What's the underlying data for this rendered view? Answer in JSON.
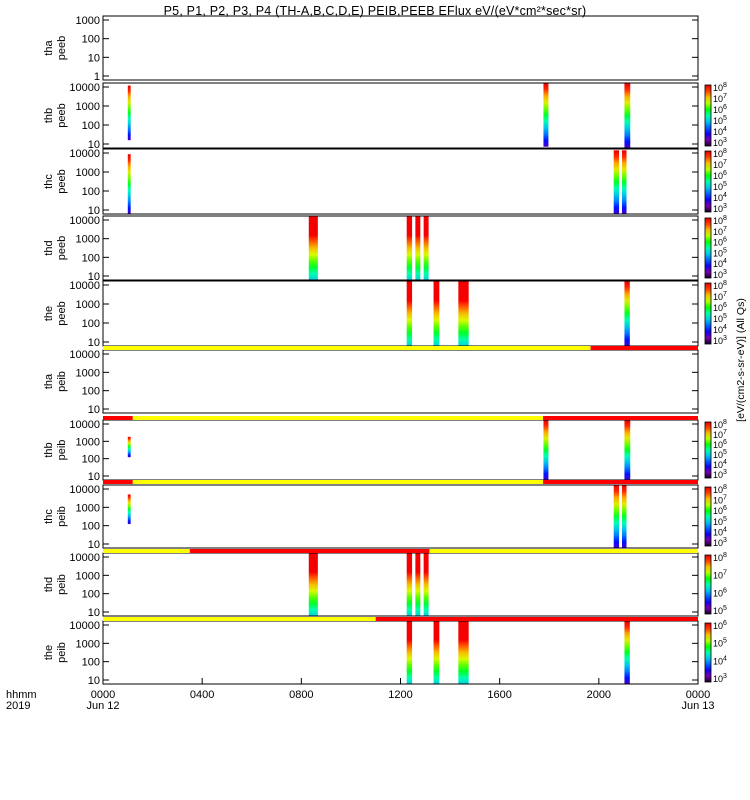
{
  "title": "P5, P1, P2, P3, P4 (TH-A,B,C,D,E) PEIB,PEEB EFlux eV/(eV*cm²*sec*sr)",
  "colorbar_label": "[eV/(cm2-s-sr-eV)] (All Qs)",
  "colors": {
    "mode_yellow": "#ffff00",
    "mode_red": "#ff0000",
    "frame": "#000000",
    "background": "#ffffff"
  },
  "chart_data": {
    "type": "heatmap",
    "x_axis": {
      "label": "hhmm",
      "year": "2019",
      "range": [
        0,
        1440
      ],
      "ticks": [
        {
          "minute": 0,
          "label": "0000",
          "date": "Jun 12"
        },
        {
          "minute": 240,
          "label": "0400",
          "date": ""
        },
        {
          "minute": 480,
          "label": "0800",
          "date": ""
        },
        {
          "minute": 720,
          "label": "1200",
          "date": ""
        },
        {
          "minute": 960,
          "label": "1600",
          "date": ""
        },
        {
          "minute": 1200,
          "label": "2000",
          "date": ""
        },
        {
          "minute": 1440,
          "label": "0000",
          "date": "Jun 13"
        }
      ]
    },
    "panels": [
      {
        "label1": "tha",
        "label2": "peeb",
        "y_ticks": [
          "1000",
          "100",
          "10",
          "1"
        ],
        "colorbar": null,
        "mode_bar": null,
        "bursts": []
      },
      {
        "label1": "thb",
        "label2": "peeb",
        "y_ticks": [
          "10000",
          "1000",
          "100",
          "10"
        ],
        "colorbar": {
          "min_exp": 3,
          "max_exp": 8,
          "ticks": [
            "10⁸",
            "10⁷",
            "10⁶",
            "10⁵",
            "10⁴",
            "10³"
          ]
        },
        "mode_bar": null,
        "bursts": [
          {
            "start": 60,
            "end": 67,
            "lo": 0.12,
            "hi": 0.96,
            "style": "band"
          },
          {
            "start": 1066,
            "end": 1078,
            "lo": 0.02,
            "hi": 1.0,
            "style": "band"
          },
          {
            "start": 1262,
            "end": 1276,
            "lo": 0.0,
            "hi": 1.0,
            "style": "band"
          }
        ]
      },
      {
        "label1": "thc",
        "label2": "peeb",
        "y_ticks": [
          "10000",
          "1000",
          "100",
          "10"
        ],
        "colorbar": {
          "min_exp": 3,
          "max_exp": 8,
          "ticks": [
            "10⁸",
            "10⁷",
            "10⁶",
            "10⁵",
            "10⁴",
            "10³"
          ]
        },
        "mode_bar": null,
        "bursts": [
          {
            "start": 60,
            "end": 67,
            "lo": 0.0,
            "hi": 0.92,
            "style": "band"
          },
          {
            "start": 1236,
            "end": 1249,
            "lo": 0.0,
            "hi": 0.98,
            "style": "band"
          },
          {
            "start": 1256,
            "end": 1267,
            "lo": 0.0,
            "hi": 0.98,
            "style": "band"
          }
        ]
      },
      {
        "label1": "thd",
        "label2": "peeb",
        "y_ticks": [
          "10000",
          "1000",
          "100",
          "10"
        ],
        "colorbar": {
          "min_exp": 3,
          "max_exp": 8,
          "ticks": [
            "10⁸",
            "10⁷",
            "10⁶",
            "10⁵",
            "10⁴",
            "10³"
          ]
        },
        "mode_bar": null,
        "bursts": [
          {
            "start": 498,
            "end": 520,
            "lo": 0.0,
            "hi": 1.0,
            "style": "hot"
          },
          {
            "start": 735,
            "end": 748,
            "lo": 0.0,
            "hi": 1.0,
            "style": "hot"
          },
          {
            "start": 756,
            "end": 768,
            "lo": 0.0,
            "hi": 1.0,
            "style": "hot"
          },
          {
            "start": 776,
            "end": 788,
            "lo": 0.0,
            "hi": 1.0,
            "style": "hot"
          }
        ]
      },
      {
        "label1": "the",
        "label2": "peeb",
        "y_ticks": [
          "10000",
          "1000",
          "100",
          "10"
        ],
        "colorbar": {
          "min_exp": 3,
          "max_exp": 8,
          "ticks": [
            "10⁸",
            "10⁷",
            "10⁶",
            "10⁵",
            "10⁴",
            "10³"
          ]
        },
        "mode_bar": [
          {
            "start": 0,
            "end": 1180,
            "color": "yellow"
          },
          {
            "start": 1180,
            "end": 1440,
            "color": "red"
          }
        ],
        "bursts": [
          {
            "start": 735,
            "end": 748,
            "lo": 0.0,
            "hi": 1.0,
            "style": "hot"
          },
          {
            "start": 800,
            "end": 814,
            "lo": 0.0,
            "hi": 1.0,
            "style": "hot"
          },
          {
            "start": 860,
            "end": 885,
            "lo": 0.0,
            "hi": 1.0,
            "style": "hot"
          },
          {
            "start": 1262,
            "end": 1275,
            "lo": 0.0,
            "hi": 1.0,
            "style": "band"
          }
        ]
      },
      {
        "label1": "tha",
        "label2": "peib",
        "y_ticks": [
          "10000",
          "1000",
          "100",
          "10"
        ],
        "colorbar": null,
        "mode_bar": [
          {
            "start": 0,
            "end": 72,
            "color": "red"
          },
          {
            "start": 72,
            "end": 1065,
            "color": "yellow"
          },
          {
            "start": 1065,
            "end": 1440,
            "color": "red"
          }
        ],
        "bursts": []
      },
      {
        "label1": "thb",
        "label2": "peib",
        "y_ticks": [
          "10000",
          "1000",
          "100",
          "10"
        ],
        "colorbar": {
          "min_exp": 3,
          "max_exp": 8,
          "ticks": [
            "10⁸",
            "10⁷",
            "10⁶",
            "10⁵",
            "10⁴",
            "10³"
          ]
        },
        "mode_bar": [
          {
            "start": 0,
            "end": 72,
            "color": "red"
          },
          {
            "start": 72,
            "end": 1065,
            "color": "yellow"
          },
          {
            "start": 1065,
            "end": 1440,
            "color": "red"
          }
        ],
        "bursts": [
          {
            "start": 60,
            "end": 67,
            "lo": 0.38,
            "hi": 0.72,
            "style": "band"
          },
          {
            "start": 1066,
            "end": 1078,
            "lo": 0.0,
            "hi": 1.0,
            "style": "band"
          },
          {
            "start": 1262,
            "end": 1276,
            "lo": 0.0,
            "hi": 1.0,
            "style": "band"
          }
        ]
      },
      {
        "label1": "thc",
        "label2": "peib",
        "y_ticks": [
          "10000",
          "1000",
          "100",
          "10"
        ],
        "colorbar": {
          "min_exp": 3,
          "max_exp": 8,
          "ticks": [
            "10⁸",
            "10⁷",
            "10⁶",
            "10⁵",
            "10⁴",
            "10³"
          ]
        },
        "mode_bar": [
          {
            "start": 0,
            "end": 210,
            "color": "yellow"
          },
          {
            "start": 210,
            "end": 790,
            "color": "red"
          },
          {
            "start": 790,
            "end": 1440,
            "color": "yellow"
          }
        ],
        "bursts": [
          {
            "start": 60,
            "end": 67,
            "lo": 0.38,
            "hi": 0.85,
            "style": "band"
          },
          {
            "start": 1236,
            "end": 1249,
            "lo": 0.0,
            "hi": 1.0,
            "style": "band"
          },
          {
            "start": 1256,
            "end": 1267,
            "lo": 0.0,
            "hi": 1.0,
            "style": "band"
          }
        ]
      },
      {
        "label1": "thd",
        "label2": "peib",
        "y_ticks": [
          "10000",
          "1000",
          "100",
          "10"
        ],
        "colorbar": {
          "min_exp": 5,
          "max_exp": 8,
          "ticks": [
            "10⁸",
            "10⁷",
            "10⁶",
            "10⁵"
          ]
        },
        "mode_bar": [
          {
            "start": 0,
            "end": 660,
            "color": "yellow"
          },
          {
            "start": 660,
            "end": 1440,
            "color": "red"
          }
        ],
        "bursts": [
          {
            "start": 498,
            "end": 520,
            "lo": 0.0,
            "hi": 1.0,
            "style": "hot"
          },
          {
            "start": 735,
            "end": 748,
            "lo": 0.0,
            "hi": 1.0,
            "style": "hot"
          },
          {
            "start": 756,
            "end": 768,
            "lo": 0.0,
            "hi": 1.0,
            "style": "hot"
          },
          {
            "start": 776,
            "end": 788,
            "lo": 0.0,
            "hi": 1.0,
            "style": "hot"
          }
        ]
      },
      {
        "label1": "the",
        "label2": "peib",
        "y_ticks": [
          "10000",
          "1000",
          "100",
          "10"
        ],
        "colorbar": {
          "min_exp": 3,
          "max_exp": 6,
          "ticks": [
            "10⁶",
            "10⁵",
            "10⁴",
            "10³"
          ]
        },
        "mode_bar": null,
        "bursts": [
          {
            "start": 735,
            "end": 748,
            "lo": 0.0,
            "hi": 1.0,
            "style": "hot"
          },
          {
            "start": 800,
            "end": 814,
            "lo": 0.0,
            "hi": 1.0,
            "style": "hot"
          },
          {
            "start": 860,
            "end": 885,
            "lo": 0.0,
            "hi": 1.0,
            "style": "hot"
          },
          {
            "start": 1262,
            "end": 1275,
            "lo": 0.0,
            "hi": 1.0,
            "style": "band"
          }
        ]
      }
    ]
  }
}
